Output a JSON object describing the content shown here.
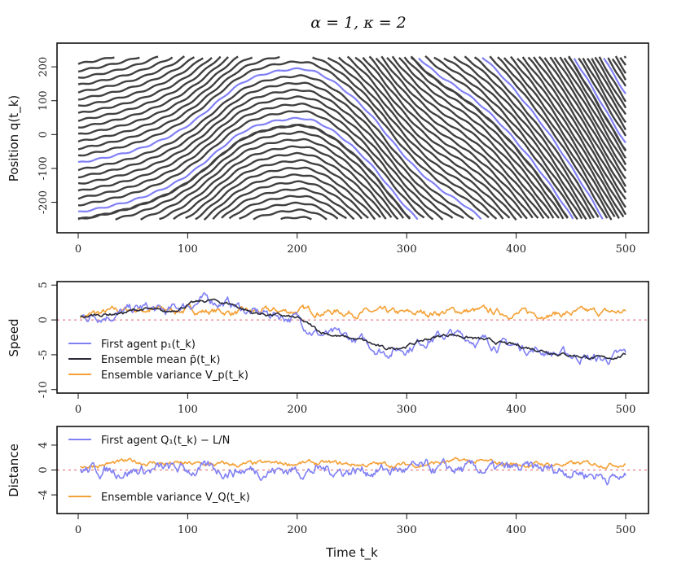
{
  "title": "α = 1, κ = 2",
  "colors": {
    "trajectory": "#404040",
    "highlight": "#8080f5",
    "mean": "#2a2a38",
    "variance": "#f5a035",
    "zero_line": "#e06070"
  },
  "chart_data": [
    {
      "id": "position",
      "type": "line",
      "ylabel": "Position q(t_k)",
      "xlim": [
        0,
        500
      ],
      "ylim": [
        -290,
        270
      ],
      "xticks": [
        "0",
        "100",
        "200",
        "300",
        "400",
        "500"
      ],
      "yticks": [
        "-200",
        "-100",
        "0",
        "100",
        "200"
      ],
      "x_range": [
        0,
        500
      ],
      "band_top": 230,
      "band_bottom": -250,
      "lane_count": 24,
      "highlight_lanes": [
        1,
        8
      ],
      "series": [
        {
          "role": "speed_profile",
          "x": [
            0,
            40,
            80,
            100,
            120,
            140,
            160,
            180,
            200,
            220,
            240,
            260,
            280,
            300,
            320,
            340,
            360,
            380,
            400,
            420,
            440,
            460,
            480,
            500
          ],
          "values": [
            0.5,
            0.8,
            1.5,
            2.2,
            2.8,
            2.6,
            1.2,
            0.6,
            0.2,
            -1.5,
            -2.5,
            -3.2,
            -4.2,
            -3.6,
            -2.8,
            -2.0,
            -2.5,
            -3.2,
            -3.8,
            -4.2,
            -4.8,
            -5.2,
            -5.6,
            -5.1
          ]
        }
      ]
    },
    {
      "id": "speed",
      "type": "line",
      "ylabel": "Speed",
      "xlim": [
        0,
        500
      ],
      "ylim": [
        -10.5,
        5.5
      ],
      "xticks": [
        "0",
        "100",
        "200",
        "300",
        "400",
        "500"
      ],
      "yticks": [
        "5",
        "0",
        "-5",
        "-10"
      ],
      "hline": 0,
      "x_range": [
        2,
        500
      ],
      "legend": [
        {
          "label": "First agent p₁(t_k)",
          "color": "#8080f5"
        },
        {
          "label": "Ensemble mean p̄(t_k)",
          "color": "#2a2a38"
        },
        {
          "label": "Ensemble variance V_p(t_k)",
          "color": "#f5a035"
        }
      ],
      "series": [
        {
          "name": "First agent p₁(t_k)",
          "x": [
            0,
            20,
            40,
            60,
            80,
            100,
            120,
            140,
            160,
            180,
            200,
            220,
            240,
            260,
            280,
            300,
            320,
            340,
            360,
            380,
            400,
            420,
            440,
            460,
            480,
            500
          ],
          "values": [
            0.3,
            0.8,
            1.0,
            1.7,
            1.0,
            2.3,
            2.9,
            2.3,
            0.9,
            0.8,
            0.2,
            -2.0,
            -2.5,
            -3.2,
            -4.5,
            -3.9,
            -2.6,
            -2.1,
            -2.7,
            -3.3,
            -3.8,
            -4.3,
            -4.9,
            -5.3,
            -5.8,
            -5.0
          ],
          "noise": 1.0
        },
        {
          "name": "Ensemble mean p̄(t_k)",
          "x": [
            0,
            20,
            40,
            60,
            80,
            100,
            120,
            140,
            160,
            180,
            200,
            220,
            240,
            260,
            280,
            300,
            320,
            340,
            360,
            380,
            400,
            420,
            440,
            460,
            480,
            500
          ],
          "values": [
            0.3,
            0.8,
            1.0,
            1.6,
            1.0,
            2.2,
            2.8,
            2.3,
            1.0,
            0.7,
            0.2,
            -1.6,
            -2.4,
            -3.0,
            -4.2,
            -3.7,
            -2.7,
            -2.0,
            -2.6,
            -3.2,
            -3.7,
            -4.2,
            -4.8,
            -5.2,
            -5.6,
            -5.0
          ],
          "noise": 0.35
        },
        {
          "name": "Ensemble variance V_p(t_k)",
          "x": [
            0,
            50,
            100,
            150,
            200,
            250,
            300,
            350,
            400,
            450,
            500
          ],
          "values": [
            0.6,
            1.6,
            1.5,
            1.1,
            1.4,
            1.2,
            0.9,
            1.4,
            1.0,
            1.0,
            1.2
          ],
          "noise": 0.7,
          "floor": 0.15
        }
      ]
    },
    {
      "id": "distance",
      "type": "line",
      "ylabel": "Distance",
      "xlabel": "Time t_k",
      "xlim": [
        0,
        500
      ],
      "ylim": [
        -7,
        7
      ],
      "xticks": [
        "0",
        "100",
        "200",
        "300",
        "400",
        "500"
      ],
      "yticks": [
        "4",
        "0",
        "-4"
      ],
      "hline": 0,
      "x_range": [
        2,
        500
      ],
      "legend": [
        {
          "label": "First agent Q₁(t_k) − L/N",
          "color": "#8080f5"
        },
        {
          "label": "Ensemble variance V_Q(t_k)",
          "color": "#f5a035"
        }
      ],
      "series": [
        {
          "name": "First agent Q₁(t_k) − L/N",
          "x": [
            0,
            50,
            100,
            150,
            200,
            250,
            300,
            350,
            400,
            450,
            500
          ],
          "values": [
            0.0,
            0.0,
            0.0,
            0.0,
            0.0,
            0.0,
            0.0,
            0.0,
            0.0,
            0.0,
            -1.5
          ],
          "noise": 1.3
        },
        {
          "name": "Ensemble variance V_Q(t_k)",
          "x": [
            0,
            50,
            100,
            150,
            200,
            250,
            300,
            350,
            400,
            450,
            500
          ],
          "values": [
            0.7,
            1.4,
            1.0,
            0.9,
            1.2,
            1.0,
            0.9,
            1.5,
            1.0,
            1.0,
            1.2
          ],
          "noise": 0.55,
          "floor": 0.2
        }
      ]
    }
  ]
}
